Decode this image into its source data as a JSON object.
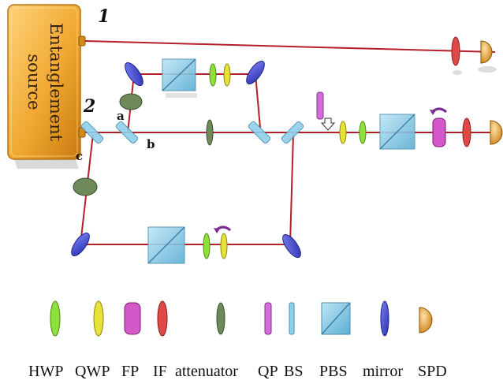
{
  "source": {
    "label_line1": "Entanglement",
    "label_line2": "source"
  },
  "path_labels": {
    "one": "1",
    "two": "2"
  },
  "point_labels": {
    "a": "a",
    "b": "b",
    "c": "c"
  },
  "legend": [
    {
      "key": "hwp",
      "label": "HWP"
    },
    {
      "key": "qwp",
      "label": "QWP"
    },
    {
      "key": "fp",
      "label": "FP"
    },
    {
      "key": "if",
      "label": "IF"
    },
    {
      "key": "attenuator",
      "label": "attenuator"
    },
    {
      "key": "qp",
      "label": "QP"
    },
    {
      "key": "bs",
      "label": "BS"
    },
    {
      "key": "pbs",
      "label": "PBS"
    },
    {
      "key": "mirror",
      "label": "mirror"
    },
    {
      "key": "spd",
      "label": "SPD"
    }
  ],
  "colors": {
    "beam": "#b3202a",
    "source": "#f0a830",
    "hwp": "#8ee03c",
    "qwp": "#e6e23a",
    "fp": "#d458c8",
    "if": "#e04848",
    "attenuator": "#6f8a5a",
    "qp": "#d070d8",
    "bs": "#8fd0ea",
    "pbs": "#7fc6e4",
    "mirror": "#3a40c8",
    "spd": "#e39a28"
  },
  "icons": [
    "optical-setup-diagram",
    "down-arrow-icon",
    "rotation-arrow-icon"
  ]
}
